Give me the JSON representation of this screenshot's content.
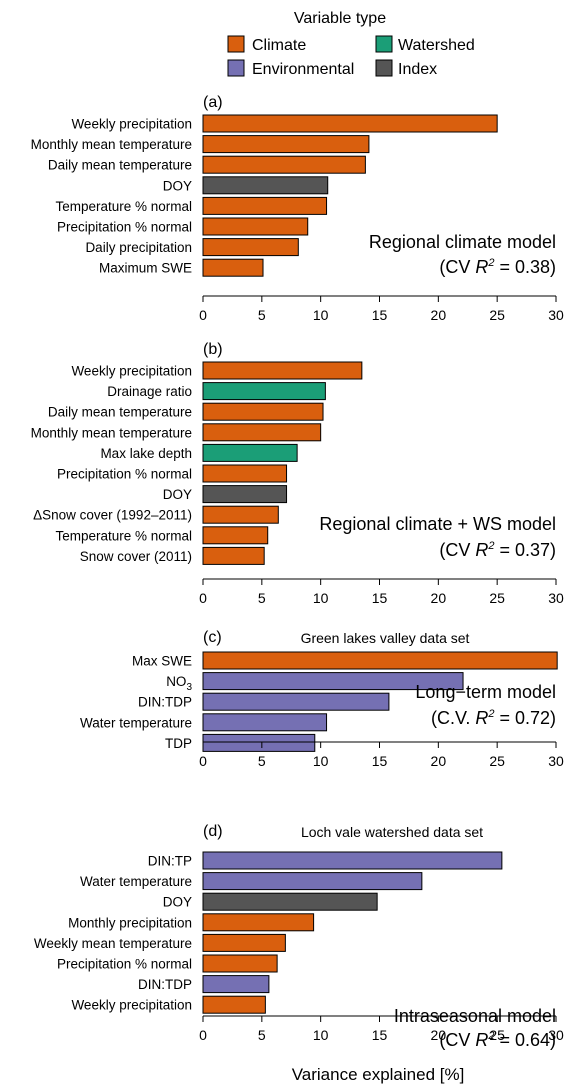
{
  "legend": {
    "title": "Variable type",
    "items": [
      {
        "label": "Climate",
        "color": "#D95F0E"
      },
      {
        "label": "Watershed",
        "color": "#1B9E77"
      },
      {
        "label": "Environmental",
        "color": "#7570B3"
      },
      {
        "label": "Index",
        "color": "#555555"
      }
    ]
  },
  "xlabel": "Variance explained [%]",
  "chart_data": [
    {
      "type": "bar",
      "orientation": "horizontal",
      "panel": "(a)",
      "subtitle": "",
      "model_name": "Regional climate model",
      "metric": "(CV R² = 0.38)",
      "metric_parts": {
        "pre": "(CV ",
        "var": "R",
        "sup": "2",
        "post": " = 0.38)"
      },
      "categories": [
        "Weekly precipitation",
        "Monthly mean temperature",
        "Daily mean temperature",
        "DOY",
        "Temperature % normal",
        "Precipitation % normal",
        "Daily precipitation",
        "Maximum SWE"
      ],
      "values": [
        25.0,
        14.1,
        13.8,
        10.6,
        10.5,
        8.9,
        8.1,
        5.1
      ],
      "var_types": [
        "Climate",
        "Climate",
        "Climate",
        "Index",
        "Climate",
        "Climate",
        "Climate",
        "Climate"
      ],
      "xlim": [
        0,
        30
      ],
      "xticks": [
        0,
        5,
        10,
        15,
        20,
        25,
        30
      ]
    },
    {
      "type": "bar",
      "orientation": "horizontal",
      "panel": "(b)",
      "subtitle": "",
      "model_name": "Regional climate + WS model",
      "metric": "(CV R² = 0.37)",
      "metric_parts": {
        "pre": "(CV ",
        "var": "R",
        "sup": "2",
        "post": " = 0.37)"
      },
      "categories": [
        "Weekly precipitation",
        "Drainage ratio",
        "Daily mean temperature",
        "Monthly mean temperature",
        "Max lake depth",
        "Precipitation % normal",
        "DOY",
        "ΔSnow cover (1992–2011)",
        "Temperature % normal",
        "Snow cover (2011)"
      ],
      "values": [
        13.5,
        10.4,
        10.2,
        10.0,
        8.0,
        7.1,
        7.1,
        6.4,
        5.5,
        5.2
      ],
      "var_types": [
        "Climate",
        "Watershed",
        "Climate",
        "Climate",
        "Watershed",
        "Climate",
        "Index",
        "Climate",
        "Climate",
        "Climate"
      ],
      "xlim": [
        0,
        30
      ],
      "xticks": [
        0,
        5,
        10,
        15,
        20,
        25,
        30
      ]
    },
    {
      "type": "bar",
      "orientation": "horizontal",
      "panel": "(c)",
      "subtitle": "Green lakes valley data set",
      "model_name": "Long−term model",
      "metric": "(C.V. R² = 0.72)",
      "metric_parts": {
        "pre": "(C.V. ",
        "var": "R",
        "sup": "2",
        "post": " = 0.72)"
      },
      "categories": [
        "Max SWE",
        "NO3",
        "DIN:TDP",
        "Water temperature",
        "TDP"
      ],
      "values": [
        30.1,
        22.1,
        15.8,
        10.5,
        9.5
      ],
      "var_types": [
        "Climate",
        "Environmental",
        "Environmental",
        "Environmental",
        "Environmental"
      ],
      "xlim": [
        0,
        30
      ],
      "xticks": [
        0,
        5,
        10,
        15,
        20,
        25,
        30
      ]
    },
    {
      "type": "bar",
      "orientation": "horizontal",
      "panel": "(d)",
      "subtitle": "Loch vale watershed data set",
      "model_name": "Intraseasonal model",
      "metric": "(CV R² = 0.64)",
      "metric_parts": {
        "pre": "(CV ",
        "var": "R",
        "sup": "2",
        "post": " = 0.64)"
      },
      "categories": [
        "DIN:TP",
        "Water temperature",
        "DOY",
        "Monthly precipitation",
        "Weekly mean temperature",
        "Precipitation % normal",
        "DIN:TDP",
        "Weekly precipitation"
      ],
      "values": [
        25.4,
        18.6,
        14.8,
        9.4,
        7.0,
        6.3,
        5.6,
        5.3
      ],
      "var_types": [
        "Environmental",
        "Environmental",
        "Index",
        "Climate",
        "Climate",
        "Climate",
        "Environmental",
        "Climate"
      ],
      "xlim": [
        0,
        30
      ],
      "xticks": [
        0,
        5,
        10,
        15,
        20,
        25,
        30
      ]
    }
  ]
}
